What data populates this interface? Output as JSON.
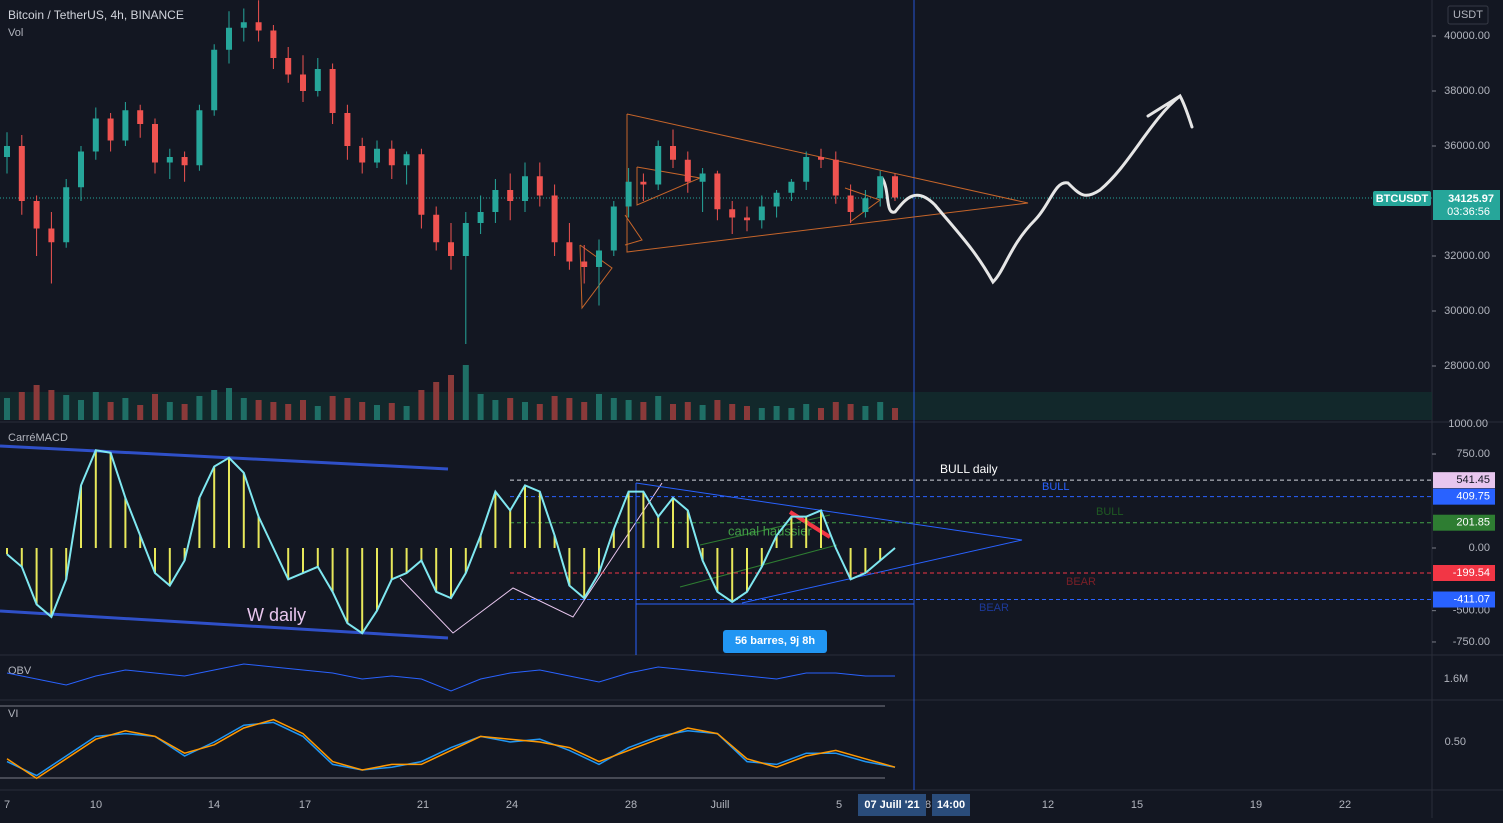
{
  "header": {
    "symbol": "Bitcoin / TetherUS, 4h, BINANCE",
    "volume_label": "Vol",
    "currency": "USDT"
  },
  "price": {
    "ticker": "BTCUSDT",
    "last": "34125.97",
    "countdown": "03:36:56",
    "last_value": 34125.97,
    "yticks": [
      {
        "value": 40000,
        "label": "40000.00"
      },
      {
        "value": 38000,
        "label": "38000.00"
      },
      {
        "value": 36000,
        "label": "36000.00"
      },
      {
        "value": 32000,
        "label": "32000.00"
      },
      {
        "value": 30000,
        "label": "30000.00"
      },
      {
        "value": 28000,
        "label": "28000.00"
      }
    ],
    "candles": [
      [
        35600,
        36500,
        35000,
        36000
      ],
      [
        36000,
        36400,
        33500,
        34000
      ],
      [
        34000,
        34200,
        32000,
        33000
      ],
      [
        33000,
        33600,
        31000,
        32500
      ],
      [
        32500,
        34800,
        32300,
        34500
      ],
      [
        34500,
        36000,
        34000,
        35800
      ],
      [
        35800,
        37400,
        35500,
        37000
      ],
      [
        37000,
        37200,
        35800,
        36200
      ],
      [
        36200,
        37600,
        36000,
        37300
      ],
      [
        37300,
        37500,
        36300,
        36800
      ],
      [
        36800,
        37000,
        35000,
        35400
      ],
      [
        35400,
        35900,
        34800,
        35600
      ],
      [
        35600,
        35800,
        34700,
        35300
      ],
      [
        35300,
        37500,
        35100,
        37300
      ],
      [
        37300,
        39700,
        37100,
        39500
      ],
      [
        39500,
        40900,
        39000,
        40300
      ],
      [
        40300,
        41000,
        39800,
        40500
      ],
      [
        40500,
        41300,
        39800,
        40200
      ],
      [
        40200,
        40400,
        38800,
        39200
      ],
      [
        39200,
        39600,
        38300,
        38600
      ],
      [
        38600,
        39300,
        37600,
        38000
      ],
      [
        38000,
        39200,
        37800,
        38800
      ],
      [
        38800,
        39000,
        36800,
        37200
      ],
      [
        37200,
        37500,
        35500,
        36000
      ],
      [
        36000,
        36300,
        35000,
        35400
      ],
      [
        35400,
        36200,
        35200,
        35900
      ],
      [
        35900,
        36200,
        34800,
        35300
      ],
      [
        35300,
        35800,
        34600,
        35700
      ],
      [
        35700,
        35900,
        33000,
        33500
      ],
      [
        33500,
        33800,
        32200,
        32500
      ],
      [
        32500,
        33200,
        31500,
        32000
      ],
      [
        32000,
        33600,
        28800,
        33200
      ],
      [
        33200,
        34200,
        32800,
        33600
      ],
      [
        33600,
        34800,
        33200,
        34400
      ],
      [
        34400,
        35000,
        33300,
        34000
      ],
      [
        34000,
        35400,
        33600,
        34900
      ],
      [
        34900,
        35400,
        33800,
        34200
      ],
      [
        34200,
        34600,
        32000,
        32500
      ],
      [
        32500,
        33200,
        31500,
        31800
      ],
      [
        31800,
        32400,
        31000,
        31600
      ],
      [
        31600,
        32600,
        30200,
        32200
      ],
      [
        32200,
        34000,
        32000,
        33800
      ],
      [
        33800,
        35200,
        33400,
        34700
      ],
      [
        34700,
        35000,
        34000,
        34600
      ],
      [
        34600,
        36200,
        34400,
        36000
      ],
      [
        36000,
        36600,
        35200,
        35500
      ],
      [
        35500,
        35800,
        34300,
        34700
      ],
      [
        34700,
        35200,
        33600,
        35000
      ],
      [
        35000,
        35100,
        33300,
        33700
      ],
      [
        33700,
        34000,
        32800,
        33400
      ],
      [
        33400,
        33800,
        32900,
        33300
      ],
      [
        33300,
        34200,
        33000,
        33800
      ],
      [
        33800,
        34400,
        33400,
        34300
      ],
      [
        34300,
        34800,
        34000,
        34700
      ],
      [
        34700,
        35800,
        34400,
        35600
      ],
      [
        35600,
        35900,
        35200,
        35500
      ],
      [
        35500,
        35800,
        33900,
        34200
      ],
      [
        34200,
        34600,
        33200,
        33600
      ],
      [
        33600,
        34400,
        33400,
        34100
      ],
      [
        34100,
        35100,
        33800,
        34900
      ],
      [
        34900,
        35000,
        34000,
        34126
      ]
    ],
    "volume": [
      22,
      28,
      35,
      30,
      25,
      20,
      28,
      18,
      22,
      15,
      26,
      18,
      16,
      24,
      30,
      32,
      22,
      20,
      18,
      16,
      20,
      14,
      24,
      22,
      18,
      15,
      17,
      14,
      30,
      38,
      45,
      55,
      26,
      20,
      22,
      18,
      16,
      24,
      22,
      18,
      26,
      22,
      20,
      18,
      24,
      16,
      18,
      15,
      20,
      16,
      14,
      12,
      14,
      12,
      16,
      12,
      18,
      16,
      14,
      18,
      12
    ],
    "volume_tick": {
      "value": 1000,
      "label": "1000.00"
    }
  },
  "macd": {
    "name": "CarréMACD",
    "yticks": [
      {
        "value": 750,
        "label": "750.00"
      },
      {
        "value": 0,
        "label": "0.00"
      },
      {
        "value": -500,
        "label": "-500.00"
      },
      {
        "value": -750,
        "label": "-750.00"
      }
    ],
    "values": [
      -50,
      -150,
      -450,
      -550,
      -250,
      500,
      780,
      760,
      400,
      100,
      -200,
      -300,
      -100,
      400,
      650,
      720,
      600,
      250,
      0,
      -250,
      -200,
      -150,
      -350,
      -600,
      -680,
      -500,
      -250,
      -200,
      -100,
      -350,
      -400,
      -200,
      100,
      450,
      300,
      500,
      450,
      100,
      -300,
      -400,
      -200,
      150,
      450,
      450,
      250,
      400,
      300,
      -100,
      -350,
      -430,
      -350,
      -150,
      100,
      250,
      250,
      300,
      0,
      -250,
      -200,
      -100,
      0
    ],
    "levels": [
      {
        "value": 541.45,
        "color": "#e8c6ee",
        "line": "#d1d4dc"
      },
      {
        "value": 409.75,
        "color": "#2962ff",
        "line": "#2962ff"
      },
      {
        "value": 201.85,
        "color": "#2e7d32",
        "line": "#43a047"
      },
      {
        "value": -199.54,
        "color": "#f23645",
        "line": "#f23645"
      },
      {
        "value": -411.07,
        "color": "#2962ff",
        "line": "#2962ff"
      }
    ],
    "annotations": {
      "bull_daily": "BULL daily",
      "bull_1": "BULL",
      "bull_2": "BULL",
      "bear_1": "BEAR",
      "bear_2": "BEAR",
      "channel": "canal haussier",
      "w_daily": "W daily",
      "measure": "56 barres, 9j 8h"
    }
  },
  "obv": {
    "name": "OBV",
    "tick": "1.6M",
    "values": [
      1.62,
      1.6,
      1.58,
      1.61,
      1.63,
      1.62,
      1.61,
      1.63,
      1.65,
      1.64,
      1.63,
      1.62,
      1.6,
      1.61,
      1.6,
      1.56,
      1.6,
      1.62,
      1.63,
      1.61,
      1.59,
      1.62,
      1.64,
      1.63,
      1.62,
      1.61,
      1.6,
      1.62,
      1.62,
      1.61,
      1.61
    ]
  },
  "vi": {
    "name": "VI",
    "yticks": [
      {
        "value": 0.5,
        "label": "0.50"
      }
    ],
    "plus": [
      0.43,
      0.38,
      0.45,
      0.52,
      0.53,
      0.52,
      0.45,
      0.5,
      0.56,
      0.57,
      0.52,
      0.42,
      0.4,
      0.41,
      0.43,
      0.48,
      0.52,
      0.5,
      0.51,
      0.47,
      0.42,
      0.48,
      0.52,
      0.54,
      0.53,
      0.43,
      0.42,
      0.46,
      0.46,
      0.43,
      0.41
    ],
    "minus": [
      0.44,
      0.37,
      0.44,
      0.51,
      0.54,
      0.52,
      0.46,
      0.49,
      0.55,
      0.58,
      0.53,
      0.43,
      0.4,
      0.42,
      0.42,
      0.47,
      0.52,
      0.51,
      0.5,
      0.48,
      0.43,
      0.47,
      0.51,
      0.55,
      0.53,
      0.44,
      0.41,
      0.45,
      0.47,
      0.44,
      0.41
    ]
  },
  "time_axis": {
    "labels": [
      "7",
      "10",
      "14",
      "17",
      "21",
      "24",
      "28",
      "Juill",
      "5",
      "8",
      "12",
      "15",
      "19",
      "22"
    ],
    "cursor_date": "07 Juill '21",
    "cursor_time": "14:00"
  }
}
